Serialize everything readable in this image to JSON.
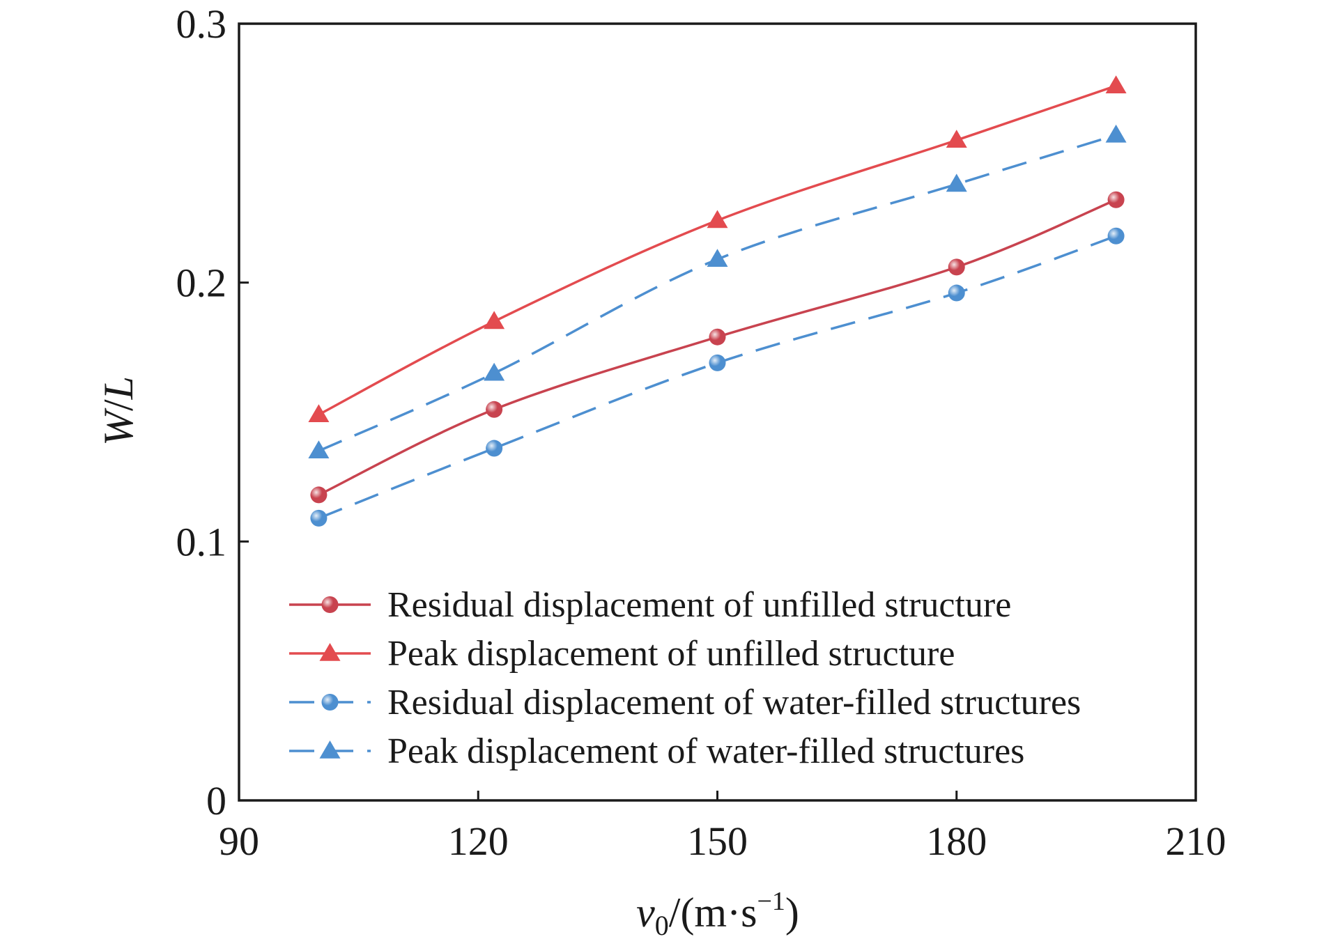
{
  "chart_data": {
    "type": "line",
    "xlabel": {
      "italic": "v",
      "sub": "0",
      "unit_pre": "/(m·s",
      "sup": "−1",
      "unit_post": ")"
    },
    "ylabel": {
      "w": "W",
      "slash": "/",
      "l": "L"
    },
    "xlim": [
      90,
      210
    ],
    "ylim": [
      0,
      0.3
    ],
    "xticks": [
      90,
      120,
      150,
      180,
      210
    ],
    "yticks": [
      0,
      0.1,
      0.2,
      0.3
    ],
    "xtick_labels": [
      "90",
      "120",
      "150",
      "180",
      "210"
    ],
    "ytick_labels": [
      "0",
      "0.1",
      "0.2",
      "0.3"
    ],
    "grid": false,
    "legend_position": "lower-left",
    "x": [
      100,
      122,
      150,
      180,
      200
    ],
    "series": [
      {
        "name": "Residual displacement of unfilled structure",
        "values": [
          0.118,
          0.151,
          0.179,
          0.206,
          0.232
        ],
        "color": "#c8434f",
        "marker": "circle",
        "dash": "solid"
      },
      {
        "name": "Peak displacement of unfilled structure",
        "values": [
          0.149,
          0.185,
          0.224,
          0.255,
          0.276
        ],
        "color": "#e34b4f",
        "marker": "triangle",
        "dash": "solid"
      },
      {
        "name": "Residual displacement of water-filled structures",
        "values": [
          0.109,
          0.136,
          0.169,
          0.196,
          0.218
        ],
        "color": "#4d8fd0",
        "marker": "circle",
        "dash": "dashed"
      },
      {
        "name": "Peak displacement of water-filled structures",
        "values": [
          0.135,
          0.165,
          0.209,
          0.238,
          0.257
        ],
        "color": "#4d8fd0",
        "marker": "triangle",
        "dash": "dashed"
      }
    ]
  }
}
